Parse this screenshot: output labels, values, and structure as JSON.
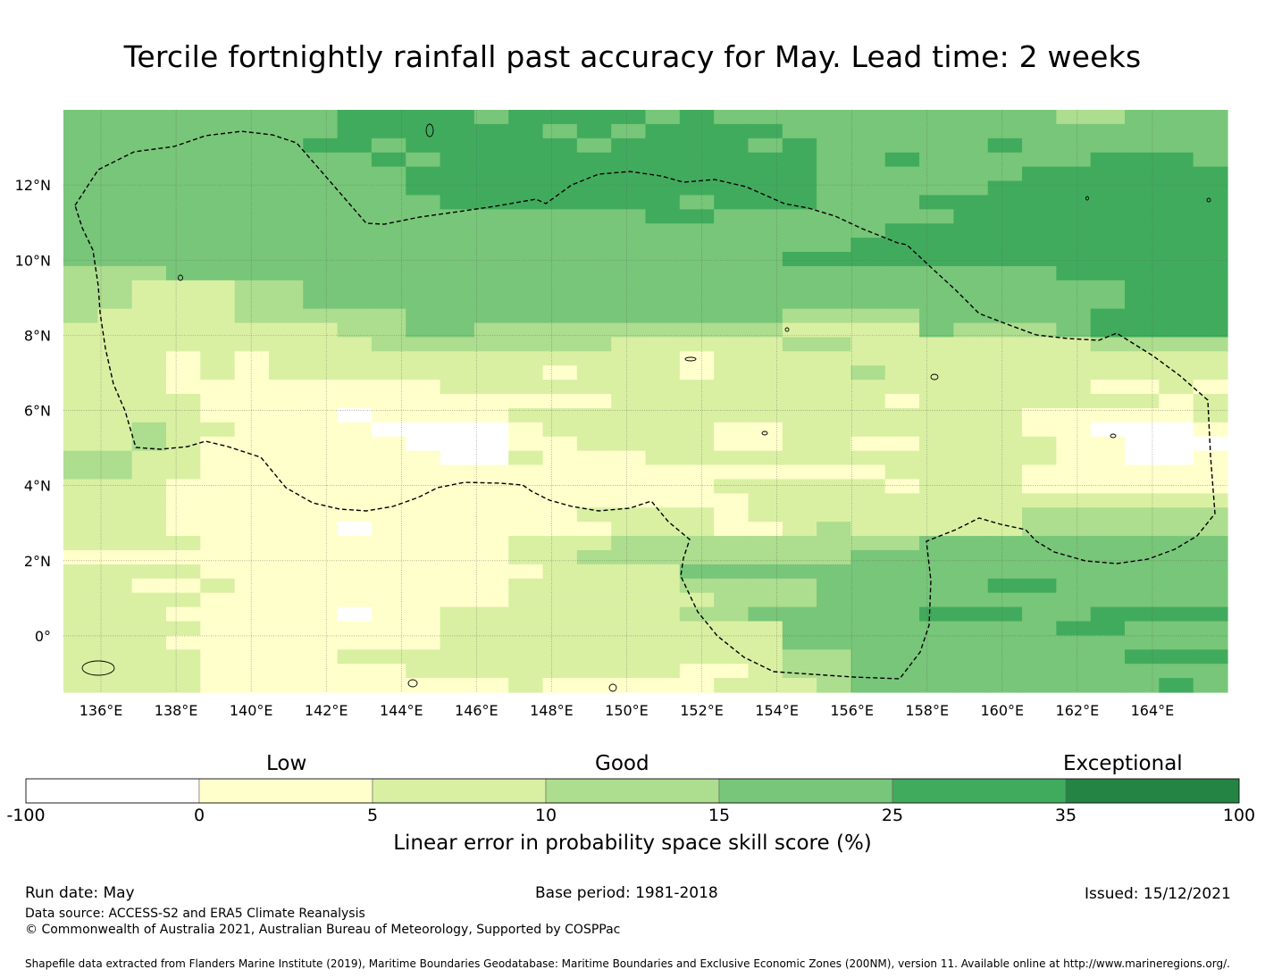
{
  "title": "Tercile fortnightly rainfall past accuracy for May. Lead time: 2 weeks",
  "map": {
    "lon_labels": [
      "136°E",
      "138°E",
      "140°E",
      "142°E",
      "144°E",
      "146°E",
      "148°E",
      "150°E",
      "152°E",
      "154°E",
      "156°E",
      "158°E",
      "160°E",
      "162°E",
      "164°E"
    ],
    "lat_labels": [
      "12°N",
      "10°N",
      "8°N",
      "6°N",
      "4°N",
      "2°N",
      "0°"
    ],
    "extent": {
      "lon_min": 135.0,
      "lon_max": 166.0,
      "lat_min": -1.5,
      "lat_max": 14.0
    },
    "grid_resolution_deg": 0.833,
    "gridlines": "on"
  },
  "chart_data": {
    "type": "heatmap",
    "title": "Tercile fortnightly rainfall past accuracy for May. Lead time: 2 weeks",
    "xlabel": "",
    "ylabel": "",
    "value_description": "Linear error in probability space skill score (%) by grid cell, coded by colour class: 0 = -100–0, 1 = 0–5, 2 = 5–10, 3 = 10–15, 4 = 15–25, 5 = 25–35, 6 = 35–100",
    "lon_range": [
      135.0,
      166.0
    ],
    "lat_range": [
      -1.5,
      14.0
    ],
    "rows": [
      "4444444455554555545444444444433444",
      "4444444455555545455554444444444444",
      "4444444554555554555545444445444444",
      "4444444445455555555555445444445554",
      "4444444444555555555555444444555555",
      "4444444444555555555555444445555555",
      "4444444444455555554555444555555555",
      "4444444444444444455444444455555555",
      "4444444444444444444444445555555555",
      "4444444444444444444444455555555555",
      "4444444444444444444445555555555555",
      "3334444444444444444444444444455555",
      "3322233444444444444444444444444555",
      "3322233444444444444444444444444555",
      "3222233333444444444443333444445555",
      "2222222233443333333332222433345555",
      "2222222223333333222223322222223333",
      "2221212222222222221222222222222222",
      "2221212222222212221222232222222222",
      "2221111111122222222222222222221121",
      "2222111111111111222222221222222212",
      "2222111101111222222222222222111112",
      "2232211110000122222112222222110001",
      "2232111111000112222112211222211000",
      "3322111111100211122222222222211001",
      "3322111111111111111111112222111111",
      "2221111111111111111222221222111111",
      "2221111111111111111122222222222222",
      "2221111111111112222122222222333333",
      "2221111101111111222112322222333333",
      "2222111111111222333333333444444444",
      "1111111111111223333333344444444444",
      "2222111111111122224444444444444444",
      "2211211111111222223333444445544444",
      "2222111111111222222333444444444444",
      "2221111101122222223344444555445555",
      "2222111111122222222224444444455444",
      "2221111111122222222224444444444444",
      "2222111122222222222223344444444555",
      "2222111111222222221123344444444444",
      "2222111111111211111222344444444454"
    ]
  },
  "colorbar": {
    "categories": [
      "Low",
      "Good",
      "Exceptional"
    ],
    "ticks": [
      "-100",
      "0",
      "5",
      "10",
      "15",
      "25",
      "35",
      "100"
    ],
    "colors": [
      "#ffffff",
      "#ffffcc",
      "#d9f0a3",
      "#addd8e",
      "#78c679",
      "#41ab5d",
      "#238443"
    ],
    "label": "Linear error in probability space skill score (%)"
  },
  "footer": {
    "run_date": "Run date: May",
    "base_period": "Base period: 1981-2018",
    "issued": "Issued: 15/12/2021",
    "data_source": "Data source: ACCESS-S2 and ERA5 Climate Reanalysis",
    "copyright": "© Commonwealth of Australia 2021, Australian Bureau of Meteorology, Supported by COSPPac",
    "shapefile": "Shapefile data extracted from Flanders Marine Institute (2019), Maritime Boundaries Geodatabase: Maritime Boundaries and Exclusive Economic Zones (200NM), version 11. Available online at http://www.marineregions.org/."
  }
}
